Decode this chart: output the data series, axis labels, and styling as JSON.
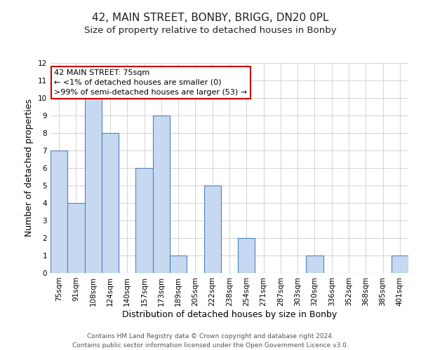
{
  "title": "42, MAIN STREET, BONBY, BRIGG, DN20 0PL",
  "subtitle": "Size of property relative to detached houses in Bonby",
  "xlabel": "Distribution of detached houses by size in Bonby",
  "ylabel": "Number of detached properties",
  "categories": [
    "75sqm",
    "91sqm",
    "108sqm",
    "124sqm",
    "140sqm",
    "157sqm",
    "173sqm",
    "189sqm",
    "205sqm",
    "222sqm",
    "238sqm",
    "254sqm",
    "271sqm",
    "287sqm",
    "303sqm",
    "320sqm",
    "336sqm",
    "352sqm",
    "368sqm",
    "385sqm",
    "401sqm"
  ],
  "values": [
    7,
    4,
    10,
    8,
    0,
    6,
    9,
    1,
    0,
    5,
    0,
    2,
    0,
    0,
    0,
    1,
    0,
    0,
    0,
    0,
    1
  ],
  "bar_color": "#c6d9f0",
  "bar_edge_color": "#4f81bd",
  "ylim": [
    0,
    12
  ],
  "yticks": [
    0,
    1,
    2,
    3,
    4,
    5,
    6,
    7,
    8,
    9,
    10,
    11,
    12
  ],
  "annotation_title": "42 MAIN STREET: 75sqm",
  "annotation_line1": "← <1% of detached houses are smaller (0)",
  "annotation_line2": ">99% of semi-detached houses are larger (53) →",
  "annotation_box_color": "#ffffff",
  "annotation_box_edge_color": "#cc0000",
  "footer_line1": "Contains HM Land Registry data © Crown copyright and database right 2024.",
  "footer_line2": "Contains public sector information licensed under the Open Government Licence v3.0.",
  "bg_color": "#ffffff",
  "grid_color": "#cccccc",
  "title_fontsize": 11,
  "subtitle_fontsize": 9.5,
  "axis_label_fontsize": 9,
  "tick_fontsize": 7.5,
  "annotation_fontsize": 8,
  "footer_fontsize": 6.5
}
